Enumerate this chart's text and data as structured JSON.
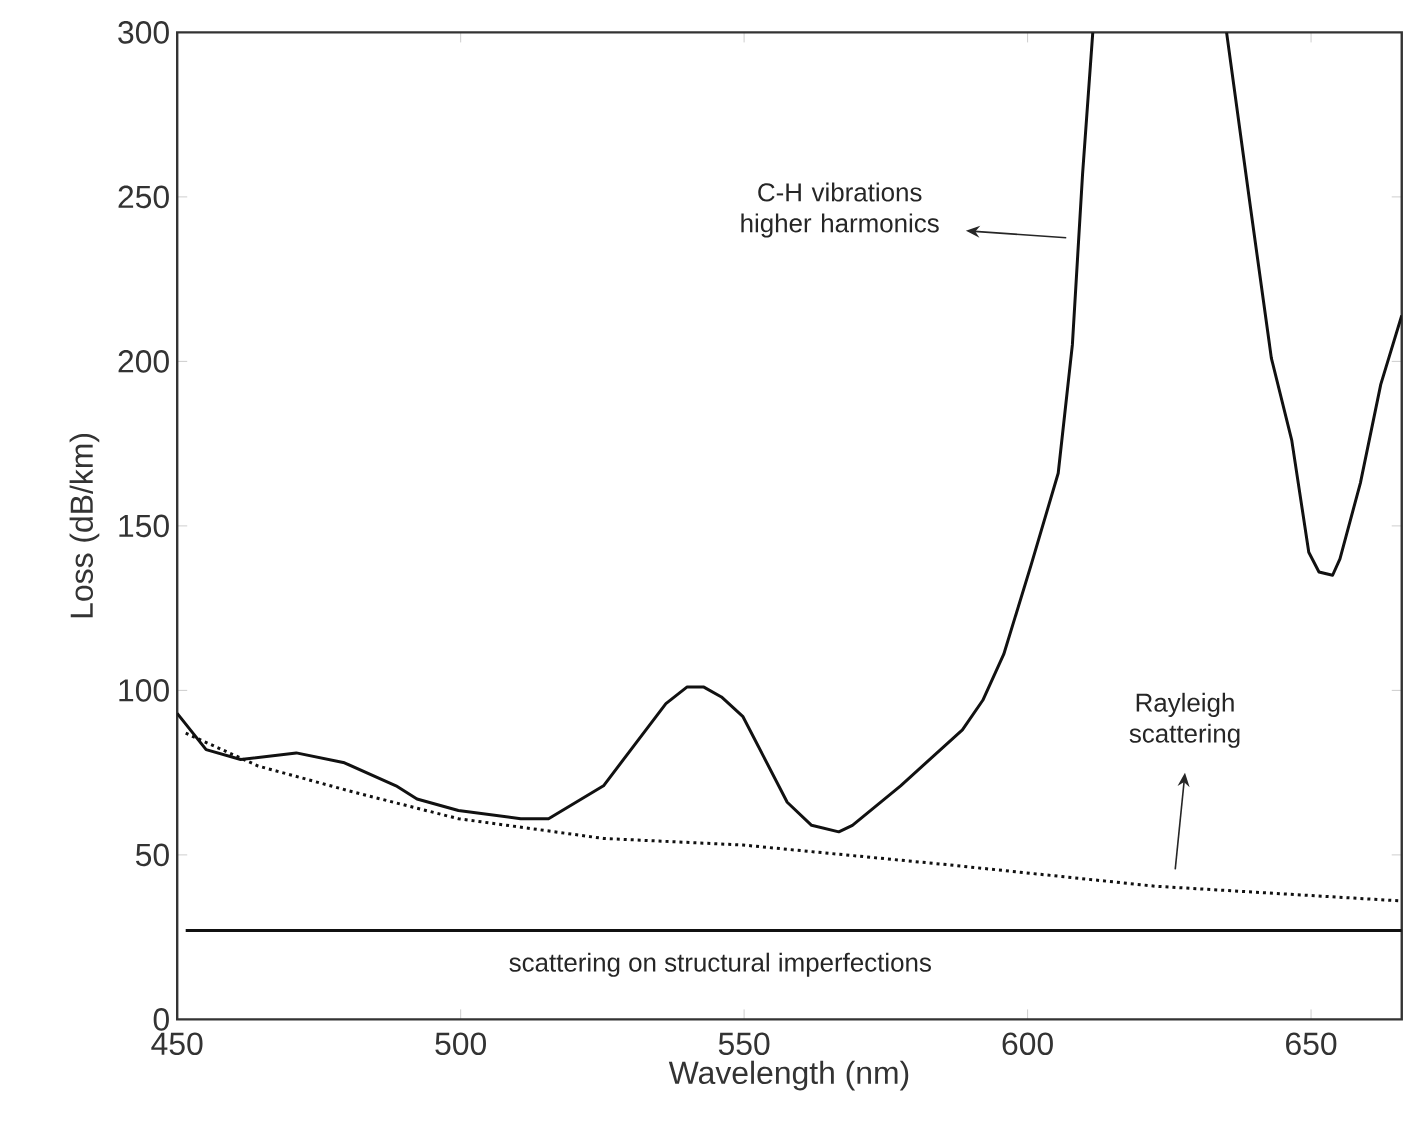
{
  "chart_data": {
    "type": "line",
    "xlabel": "Wavelength (nm)",
    "ylabel": "Loss (dB/km)",
    "xlim": [
      450,
      666
    ],
    "ylim": [
      0,
      300
    ],
    "xticks": [
      450,
      500,
      550,
      600,
      650
    ],
    "yticks": [
      0,
      50,
      100,
      150,
      200,
      250,
      300
    ],
    "grid": false,
    "marker": "none",
    "series": [
      {
        "color": "#111111",
        "line_style": "solid",
        "x": [
          450,
          455.1,
          461.2,
          471,
          479.5,
          488.6,
          492.3,
          499.6,
          510.6,
          515.5,
          525.2,
          536.2,
          539.9,
          542.9,
          546,
          549.8,
          557.6,
          561.9,
          566.7,
          569.1,
          577.6,
          588.5,
          592.1,
          595.8,
          600.6,
          605.4,
          607.9,
          609.7,
          611.5,
          623,
          635.1,
          639.3,
          643,
          646.6,
          649.6,
          651.4,
          653.8,
          655.1,
          658.7,
          662.3,
          666
        ],
        "values": [
          93,
          82,
          79,
          81,
          78,
          71,
          67,
          63.5,
          61,
          61,
          71,
          96,
          101,
          101,
          98,
          92,
          66,
          59,
          57,
          59,
          71,
          88,
          97,
          111,
          138,
          166,
          205,
          257,
          300,
          null,
          300,
          247,
          201,
          176,
          142,
          136,
          135,
          140,
          163,
          193,
          214
        ]
      },
      {
        "color": "#111111",
        "line_style": "dotted",
        "x": [
          451.5,
          464.3,
          481.3,
          499.6,
          525.2,
          549.8,
          586,
          622.4,
          666
        ],
        "values": [
          87,
          77,
          69,
          61,
          55,
          53,
          47,
          40.5,
          36
        ]
      },
      {
        "color": "#111111",
        "line_style": "solid",
        "x": [
          451.5,
          666
        ],
        "values": [
          27,
          27
        ]
      }
    ],
    "annotations": [
      "C-H vibrations higher harmonics",
      "Rayleigh scattering",
      {
        "text": "scattering on structural imperfections",
        "x": 545.8,
        "y": 27
      }
    ]
  }
}
